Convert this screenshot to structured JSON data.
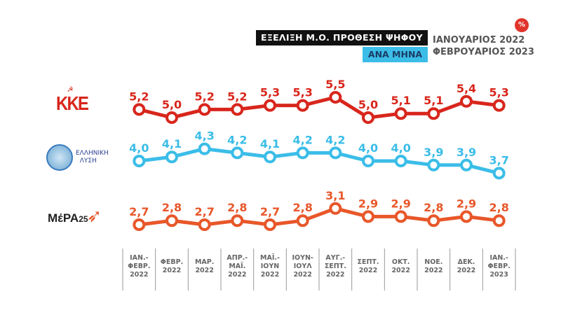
{
  "header": {
    "title": "ΕΞΕΛΙΞΗ Μ.Ο. ΠΡΟΘΕΣΗ ΨΗΦΟΥ",
    "subtitle": "ΑΝΑ ΜΗΝΑ",
    "period_start": "ΙΑΝΟΥΑΡΙΟΣ 2022",
    "period_end": "ΦΕΒΡΟΥΑΡΙΟΣ 2023",
    "unit_badge": "%"
  },
  "chart_data": {
    "type": "line",
    "categories": [
      [
        "ΙΑΝ.-",
        "ΦΕΒΡ.",
        "2022"
      ],
      [
        "ΦΕΒΡ.",
        "2022"
      ],
      [
        "ΜΑΡ.",
        "2022"
      ],
      [
        "ΑΠΡ.-",
        "ΜΑΪ.",
        "2022"
      ],
      [
        "ΜΑΪ.-",
        "ΙΟΥΝ",
        "2022"
      ],
      [
        "ΙΟΥΝ-",
        "ΙΟΥΛ",
        "2022"
      ],
      [
        "ΑΥΓ.-",
        "ΣΕΠΤ.",
        "2022"
      ],
      [
        "ΣΕΠΤ.",
        "2022"
      ],
      [
        "ΟΚΤ.",
        "2022"
      ],
      [
        "ΝΟΕ.",
        "2022"
      ],
      [
        "ΔΕΚ.",
        "2022"
      ],
      [
        "ΙΑΝ.-",
        "ΦΕΒΡ.",
        "2023"
      ]
    ],
    "series": [
      {
        "name": "ΚΚΕ",
        "color": "#d8261c",
        "values": [
          5.2,
          5.0,
          5.2,
          5.2,
          5.3,
          5.3,
          5.5,
          5.0,
          5.1,
          5.1,
          5.4,
          5.3
        ]
      },
      {
        "name": "ΕΛΛΗΝΙΚΗ ΛΥΣΗ",
        "color": "#3bbde8",
        "values": [
          4.0,
          4.1,
          4.3,
          4.2,
          4.1,
          4.2,
          4.2,
          4.0,
          4.0,
          3.9,
          3.9,
          3.7
        ]
      },
      {
        "name": "ΜέΡΑ25",
        "color": "#e8572a",
        "values": [
          2.7,
          2.8,
          2.7,
          2.8,
          2.7,
          2.8,
          3.1,
          2.9,
          2.9,
          2.8,
          2.9,
          2.8
        ]
      }
    ],
    "decimal_separator": ","
  }
}
